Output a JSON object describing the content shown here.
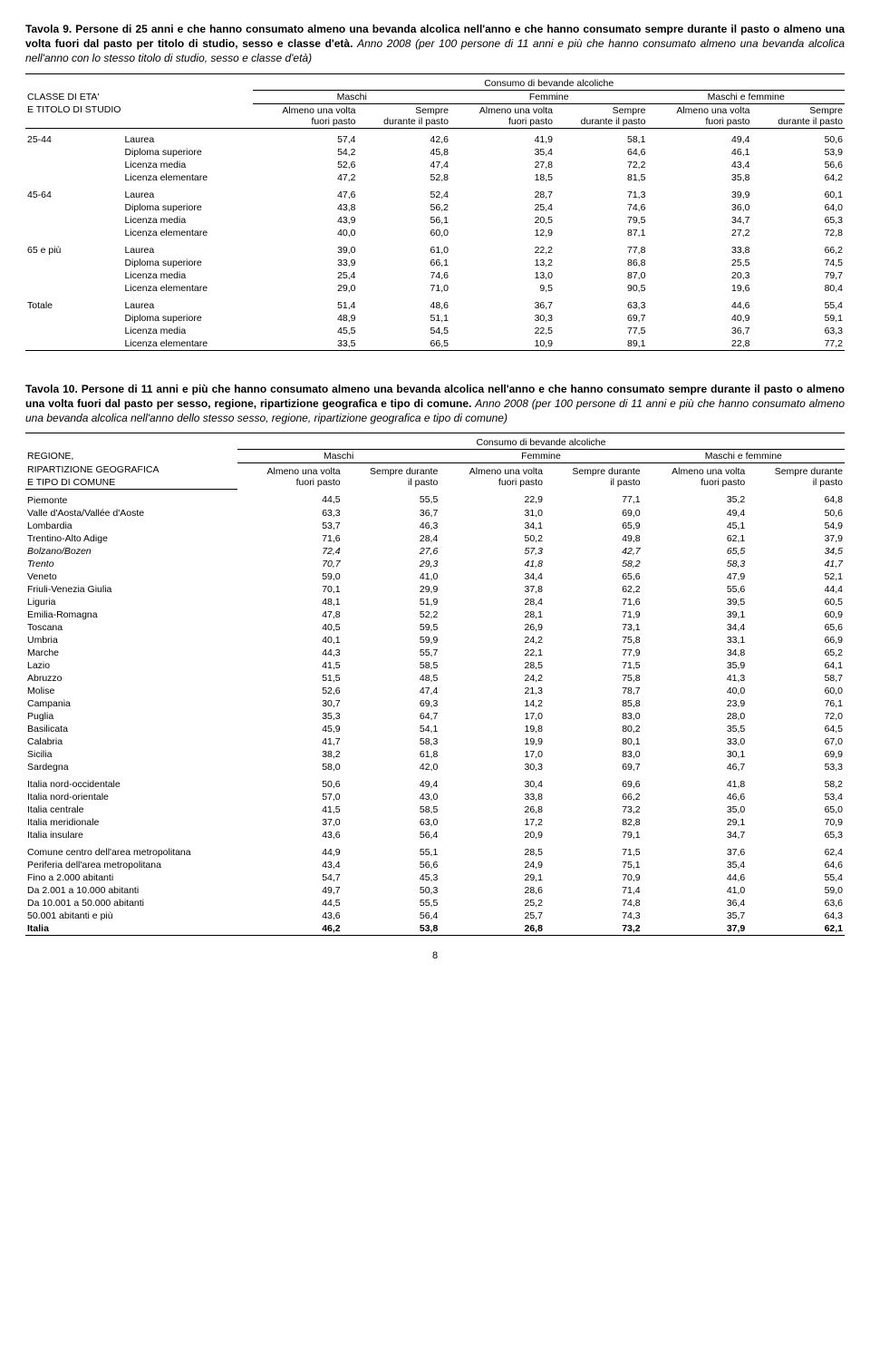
{
  "tavola9": {
    "caption_bold": "Tavola 9. Persone di 25 anni e che hanno consumato almeno una bevanda alcolica nell'anno e che hanno consumato sempre durante il pasto o almeno una volta fuori dal pasto per titolo di studio, sesso e classe d'età.",
    "caption_italic": "Anno 2008 (per 100 persone di 11 anni e più che hanno consumato almeno una bevanda alcolica nell'anno con lo stesso titolo di studio, sesso e classe d'età)",
    "super_header": "Consumo di bevande alcoliche",
    "row_header1": "CLASSE DI ETA'",
    "row_header2": "E TITOLO DI STUDIO",
    "col_groups": [
      "Maschi",
      "Femmine",
      "Maschi e femmine"
    ],
    "sub_col1": "Almeno una volta fuori pasto",
    "sub_col2": "Sempre durante il pasto",
    "age_groups": [
      {
        "label": "25-44",
        "rows": [
          {
            "titolo": "Laurea",
            "v": [
              "57,4",
              "42,6",
              "41,9",
              "58,1",
              "49,4",
              "50,6"
            ]
          },
          {
            "titolo": "Diploma superiore",
            "v": [
              "54,2",
              "45,8",
              "35,4",
              "64,6",
              "46,1",
              "53,9"
            ]
          },
          {
            "titolo": "Licenza media",
            "v": [
              "52,6",
              "47,4",
              "27,8",
              "72,2",
              "43,4",
              "56,6"
            ]
          },
          {
            "titolo": "Licenza elementare",
            "v": [
              "47,2",
              "52,8",
              "18,5",
              "81,5",
              "35,8",
              "64,2"
            ]
          }
        ]
      },
      {
        "label": "45-64",
        "rows": [
          {
            "titolo": "Laurea",
            "v": [
              "47,6",
              "52,4",
              "28,7",
              "71,3",
              "39,9",
              "60,1"
            ]
          },
          {
            "titolo": "Diploma superiore",
            "v": [
              "43,8",
              "56,2",
              "25,4",
              "74,6",
              "36,0",
              "64,0"
            ]
          },
          {
            "titolo": "Licenza media",
            "v": [
              "43,9",
              "56,1",
              "20,5",
              "79,5",
              "34,7",
              "65,3"
            ]
          },
          {
            "titolo": "Licenza elementare",
            "v": [
              "40,0",
              "60,0",
              "12,9",
              "87,1",
              "27,2",
              "72,8"
            ]
          }
        ]
      },
      {
        "label": "65 e più",
        "rows": [
          {
            "titolo": "Laurea",
            "v": [
              "39,0",
              "61,0",
              "22,2",
              "77,8",
              "33,8",
              "66,2"
            ]
          },
          {
            "titolo": "Diploma superiore",
            "v": [
              "33,9",
              "66,1",
              "13,2",
              "86,8",
              "25,5",
              "74,5"
            ]
          },
          {
            "titolo": "Licenza media",
            "v": [
              "25,4",
              "74,6",
              "13,0",
              "87,0",
              "20,3",
              "79,7"
            ]
          },
          {
            "titolo": "Licenza elementare",
            "v": [
              "29,0",
              "71,0",
              "9,5",
              "90,5",
              "19,6",
              "80,4"
            ]
          }
        ]
      },
      {
        "label": "Totale",
        "rows": [
          {
            "titolo": "Laurea",
            "v": [
              "51,4",
              "48,6",
              "36,7",
              "63,3",
              "44,6",
              "55,4"
            ]
          },
          {
            "titolo": "Diploma superiore",
            "v": [
              "48,9",
              "51,1",
              "30,3",
              "69,7",
              "40,9",
              "59,1"
            ]
          },
          {
            "titolo": "Licenza media",
            "v": [
              "45,5",
              "54,5",
              "22,5",
              "77,5",
              "36,7",
              "63,3"
            ]
          },
          {
            "titolo": "Licenza elementare",
            "v": [
              "33,5",
              "66,5",
              "10,9",
              "89,1",
              "22,8",
              "77,2"
            ]
          }
        ]
      }
    ]
  },
  "tavola10": {
    "caption_bold": "Tavola 10. Persone di 11 anni e più che hanno consumato almeno una bevanda alcolica nell'anno e che hanno consumato sempre durante il pasto o almeno una volta fuori dal pasto per sesso, regione, ripartizione geografica e tipo di comune.",
    "caption_italic": "Anno 2008 (per 100 persone di 11 anni e più che hanno consumato almeno una bevanda alcolica nell'anno dello stesso sesso, regione, ripartizione geografica e tipo di comune)",
    "super_header": "Consumo di bevande alcoliche",
    "row_header1": "REGIONE,",
    "row_header2": "RIPARTIZIONE GEOGRAFICA",
    "row_header3": "E TIPO DI COMUNE",
    "col_groups": [
      "Maschi",
      "Femmine",
      "Maschi e femmine"
    ],
    "sub_col1": "Almeno una volta fuori pasto",
    "sub_col2": "Sempre durante il pasto",
    "sections": [
      {
        "rows": [
          {
            "label": "Piemonte",
            "v": [
              "44,5",
              "55,5",
              "22,9",
              "77,1",
              "35,2",
              "64,8"
            ]
          },
          {
            "label": "Valle d'Aosta/Vallée d'Aoste",
            "v": [
              "63,3",
              "36,7",
              "31,0",
              "69,0",
              "49,4",
              "50,6"
            ]
          },
          {
            "label": "Lombardia",
            "v": [
              "53,7",
              "46,3",
              "34,1",
              "65,9",
              "45,1",
              "54,9"
            ]
          },
          {
            "label": "Trentino-Alto Adige",
            "v": [
              "71,6",
              "28,4",
              "50,2",
              "49,8",
              "62,1",
              "37,9"
            ]
          },
          {
            "label": "Bolzano/Bozen",
            "v": [
              "72,4",
              "27,6",
              "57,3",
              "42,7",
              "65,5",
              "34,5"
            ],
            "italic": true
          },
          {
            "label": "Trento",
            "v": [
              "70,7",
              "29,3",
              "41,8",
              "58,2",
              "58,3",
              "41,7"
            ],
            "italic": true
          },
          {
            "label": "Veneto",
            "v": [
              "59,0",
              "41,0",
              "34,4",
              "65,6",
              "47,9",
              "52,1"
            ]
          },
          {
            "label": "Friuli-Venezia Giulia",
            "v": [
              "70,1",
              "29,9",
              "37,8",
              "62,2",
              "55,6",
              "44,4"
            ]
          },
          {
            "label": "Liguria",
            "v": [
              "48,1",
              "51,9",
              "28,4",
              "71,6",
              "39,5",
              "60,5"
            ]
          },
          {
            "label": "Emilia-Romagna",
            "v": [
              "47,8",
              "52,2",
              "28,1",
              "71,9",
              "39,1",
              "60,9"
            ]
          },
          {
            "label": "Toscana",
            "v": [
              "40,5",
              "59,5",
              "26,9",
              "73,1",
              "34,4",
              "65,6"
            ]
          },
          {
            "label": "Umbria",
            "v": [
              "40,1",
              "59,9",
              "24,2",
              "75,8",
              "33,1",
              "66,9"
            ]
          },
          {
            "label": "Marche",
            "v": [
              "44,3",
              "55,7",
              "22,1",
              "77,9",
              "34,8",
              "65,2"
            ]
          },
          {
            "label": "Lazio",
            "v": [
              "41,5",
              "58,5",
              "28,5",
              "71,5",
              "35,9",
              "64,1"
            ]
          },
          {
            "label": "Abruzzo",
            "v": [
              "51,5",
              "48,5",
              "24,2",
              "75,8",
              "41,3",
              "58,7"
            ]
          },
          {
            "label": "Molise",
            "v": [
              "52,6",
              "47,4",
              "21,3",
              "78,7",
              "40,0",
              "60,0"
            ]
          },
          {
            "label": "Campania",
            "v": [
              "30,7",
              "69,3",
              "14,2",
              "85,8",
              "23,9",
              "76,1"
            ]
          },
          {
            "label": "Puglia",
            "v": [
              "35,3",
              "64,7",
              "17,0",
              "83,0",
              "28,0",
              "72,0"
            ]
          },
          {
            "label": "Basilicata",
            "v": [
              "45,9",
              "54,1",
              "19,8",
              "80,2",
              "35,5",
              "64,5"
            ]
          },
          {
            "label": "Calabria",
            "v": [
              "41,7",
              "58,3",
              "19,9",
              "80,1",
              "33,0",
              "67,0"
            ]
          },
          {
            "label": "Sicilia",
            "v": [
              "38,2",
              "61,8",
              "17,0",
              "83,0",
              "30,1",
              "69,9"
            ]
          },
          {
            "label": "Sardegna",
            "v": [
              "58,0",
              "42,0",
              "30,3",
              "69,7",
              "46,7",
              "53,3"
            ]
          }
        ]
      },
      {
        "rows": [
          {
            "label": "Italia nord-occidentale",
            "v": [
              "50,6",
              "49,4",
              "30,4",
              "69,6",
              "41,8",
              "58,2"
            ]
          },
          {
            "label": "Italia nord-orientale",
            "v": [
              "57,0",
              "43,0",
              "33,8",
              "66,2",
              "46,6",
              "53,4"
            ]
          },
          {
            "label": "Italia centrale",
            "v": [
              "41,5",
              "58,5",
              "26,8",
              "73,2",
              "35,0",
              "65,0"
            ]
          },
          {
            "label": "Italia meridionale",
            "v": [
              "37,0",
              "63,0",
              "17,2",
              "82,8",
              "29,1",
              "70,9"
            ]
          },
          {
            "label": "Italia insulare",
            "v": [
              "43,6",
              "56,4",
              "20,9",
              "79,1",
              "34,7",
              "65,3"
            ]
          }
        ]
      },
      {
        "rows": [
          {
            "label": "Comune centro dell'area metropolitana",
            "v": [
              "44,9",
              "55,1",
              "28,5",
              "71,5",
              "37,6",
              "62,4"
            ]
          },
          {
            "label": "Periferia dell'area metropolitana",
            "v": [
              "43,4",
              "56,6",
              "24,9",
              "75,1",
              "35,4",
              "64,6"
            ]
          },
          {
            "label": "Fino a 2.000 abitanti",
            "v": [
              "54,7",
              "45,3",
              "29,1",
              "70,9",
              "44,6",
              "55,4"
            ]
          },
          {
            "label": "Da 2.001 a 10.000 abitanti",
            "v": [
              "49,7",
              "50,3",
              "28,6",
              "71,4",
              "41,0",
              "59,0"
            ]
          },
          {
            "label": "Da 10.001 a 50.000 abitanti",
            "v": [
              "44,5",
              "55,5",
              "25,2",
              "74,8",
              "36,4",
              "63,6"
            ]
          },
          {
            "label": "50.001 abitanti e più",
            "v": [
              "43,6",
              "56,4",
              "25,7",
              "74,3",
              "35,7",
              "64,3"
            ]
          },
          {
            "label": "Italia",
            "v": [
              "46,2",
              "53,8",
              "26,8",
              "73,2",
              "37,9",
              "62,1"
            ],
            "bold": true
          }
        ]
      }
    ]
  },
  "page_number": "8"
}
